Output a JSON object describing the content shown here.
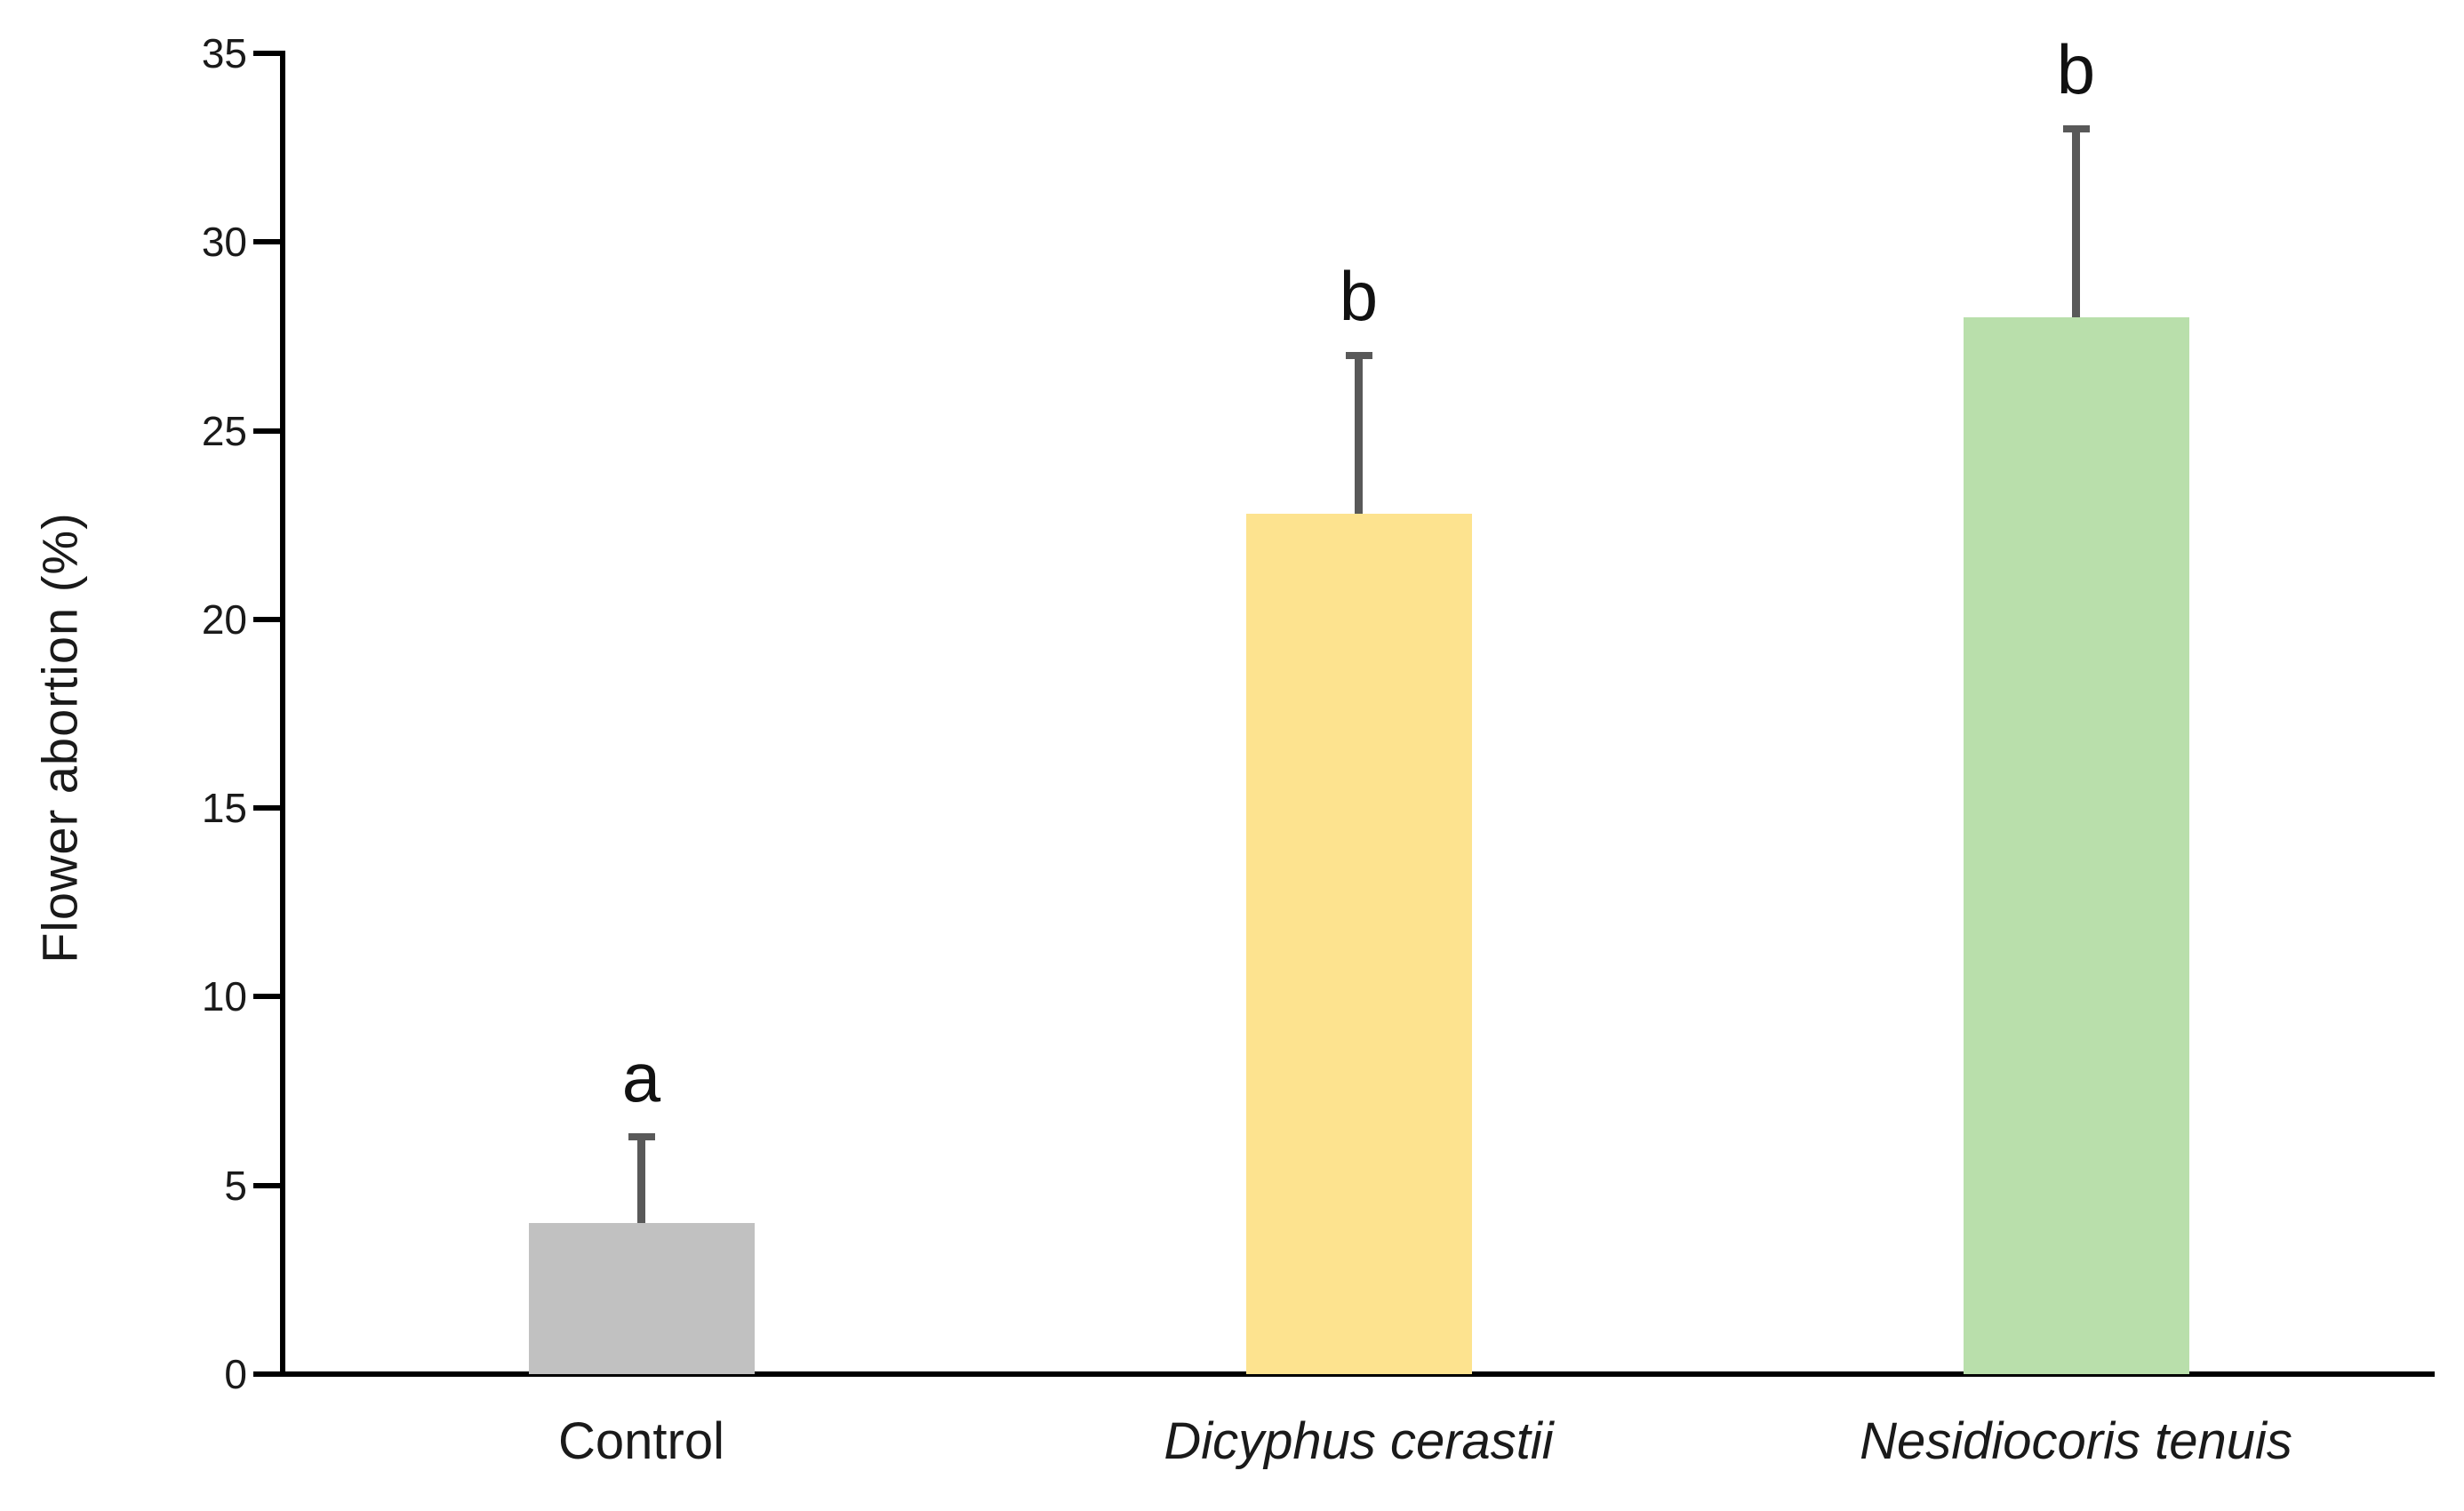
{
  "chart_data": {
    "type": "bar",
    "title": "",
    "xlabel": "",
    "ylabel": "Flower abortion (%)",
    "ylim": [
      0,
      35
    ],
    "yticks": [
      0,
      5,
      10,
      15,
      20,
      25,
      30,
      35
    ],
    "grid": false,
    "legend": "none",
    "categories": [
      "Control",
      "Dicyphus cerastii",
      "Nesidiocoris tenuis"
    ],
    "categories_italic": [
      false,
      true,
      true
    ],
    "series": [
      {
        "name": "Flower abortion (%)",
        "values": [
          4.0,
          22.8,
          28.0
        ],
        "error_plus": [
          2.3,
          4.2,
          5.0
        ],
        "bar_colors": [
          "#C1C1C1",
          "#FDE38F",
          "#B9DFAB"
        ],
        "sig_letters": [
          "a",
          "b",
          "b"
        ]
      }
    ],
    "colors": {
      "axis": "#000000",
      "text": "#1a1a1a",
      "error_bar": "#595959",
      "background": "#ffffff"
    }
  }
}
